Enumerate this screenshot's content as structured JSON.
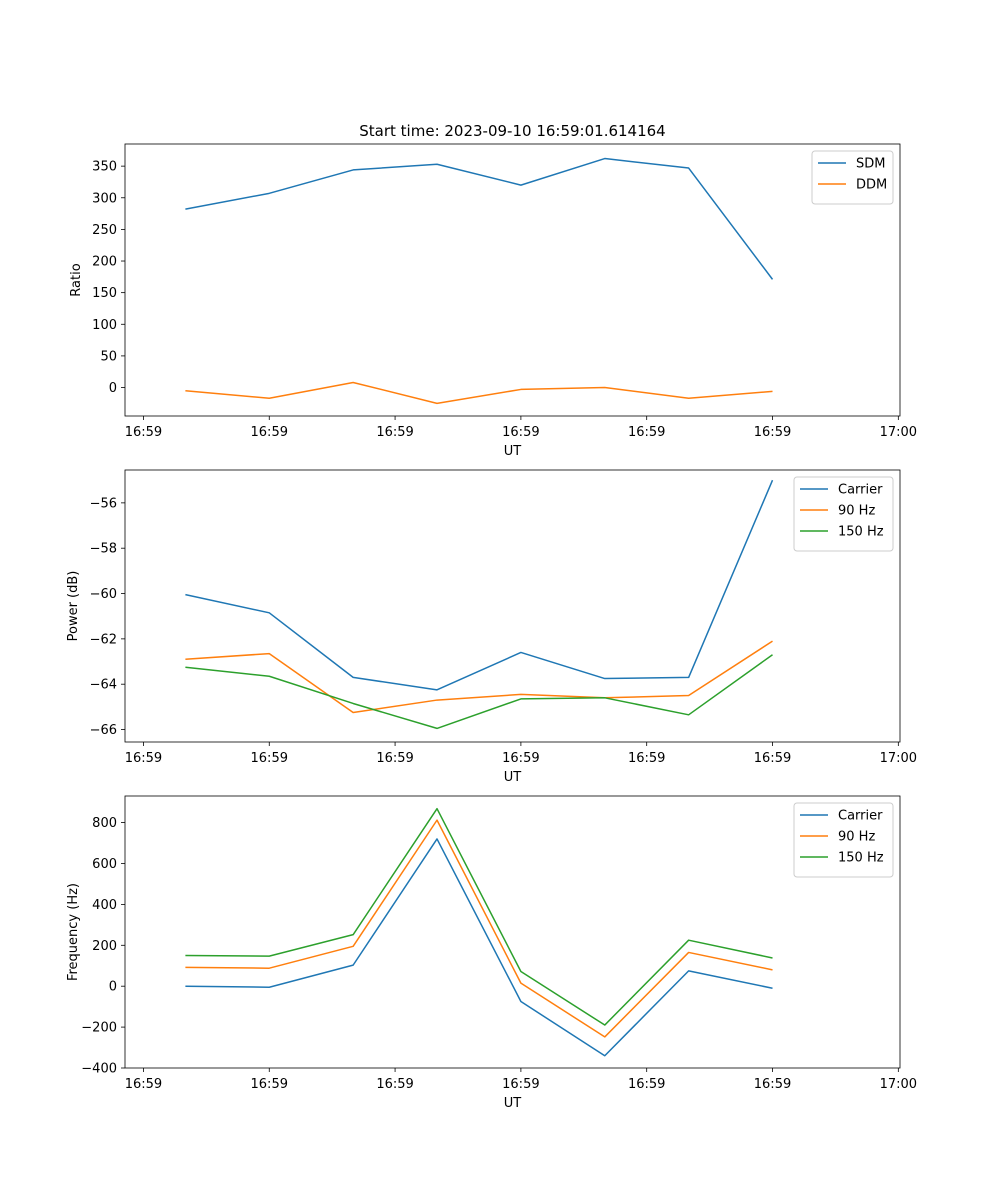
{
  "figure_title": "Start time: 2023-09-10 16:59:01.614164",
  "chart_data": [
    {
      "type": "line",
      "title": "Start time: 2023-09-10 16:59:01.614164",
      "xlabel": "UT",
      "ylabel": "Ratio",
      "x": [
        1,
        2,
        3,
        4,
        5,
        6,
        7,
        8
      ],
      "xlim": [
        0.28,
        9.52
      ],
      "xticks": [
        0.5,
        2.0,
        3.5,
        5.0,
        6.5,
        8.0,
        9.5
      ],
      "xtick_labels": [
        "16:59",
        "16:59",
        "16:59",
        "16:59",
        "16:59",
        "16:59",
        "17:00"
      ],
      "ylim": [
        -45,
        385
      ],
      "yticks": [
        0,
        50,
        100,
        150,
        200,
        250,
        300,
        350
      ],
      "ytick_labels": [
        "0",
        "50",
        "100",
        "150",
        "200",
        "250",
        "300",
        "350"
      ],
      "legend_loc": "top-right",
      "series": [
        {
          "name": "SDM",
          "color": "#1f77b4",
          "values": [
            282,
            307,
            344,
            353,
            320,
            362,
            347,
            171
          ]
        },
        {
          "name": "DDM",
          "color": "#ff7f0e",
          "values": [
            -5,
            -17,
            8,
            -25,
            -3,
            0,
            -17,
            -6
          ]
        }
      ]
    },
    {
      "type": "line",
      "title": "",
      "xlabel": "UT",
      "ylabel": "Power (dB)",
      "x": [
        1,
        2,
        3,
        4,
        5,
        6,
        7,
        8
      ],
      "xlim": [
        0.28,
        9.52
      ],
      "xticks": [
        0.5,
        2.0,
        3.5,
        5.0,
        6.5,
        8.0,
        9.5
      ],
      "xtick_labels": [
        "16:59",
        "16:59",
        "16:59",
        "16:59",
        "16:59",
        "16:59",
        "17:00"
      ],
      "ylim": [
        -66.55,
        -54.55
      ],
      "yticks": [
        -66,
        -64,
        -62,
        -60,
        -58,
        -56
      ],
      "ytick_labels": [
        "−66",
        "−64",
        "−62",
        "−60",
        "−58",
        "−56"
      ],
      "legend_loc": "top-right",
      "series": [
        {
          "name": "Carrier",
          "color": "#1f77b4",
          "values": [
            -60.05,
            -60.85,
            -63.7,
            -64.25,
            -62.6,
            -63.75,
            -63.7,
            -55.0
          ]
        },
        {
          "name": "90 Hz",
          "color": "#ff7f0e",
          "values": [
            -62.9,
            -62.65,
            -65.25,
            -64.7,
            -64.45,
            -64.6,
            -64.5,
            -62.1
          ]
        },
        {
          "name": "150 Hz",
          "color": "#2ca02c",
          "values": [
            -63.25,
            -63.65,
            -64.85,
            -65.95,
            -64.65,
            -64.6,
            -65.35,
            -62.7
          ]
        }
      ]
    },
    {
      "type": "line",
      "title": "",
      "xlabel": "UT",
      "ylabel": "Frequency (Hz)",
      "x": [
        1,
        2,
        3,
        4,
        5,
        6,
        7,
        8
      ],
      "xlim": [
        0.28,
        9.52
      ],
      "xticks": [
        0.5,
        2.0,
        3.5,
        5.0,
        6.5,
        8.0,
        9.5
      ],
      "xtick_labels": [
        "16:59",
        "16:59",
        "16:59",
        "16:59",
        "16:59",
        "16:59",
        "17:00"
      ],
      "ylim": [
        -400,
        930
      ],
      "yticks": [
        -400,
        -200,
        0,
        200,
        400,
        600,
        800
      ],
      "ytick_labels": [
        "−400",
        "−200",
        "0",
        "200",
        "400",
        "600",
        "800"
      ],
      "legend_loc": "top-right",
      "series": [
        {
          "name": "Carrier",
          "color": "#1f77b4",
          "values": [
            0,
            -5,
            103,
            720,
            -75,
            -340,
            75,
            -10
          ]
        },
        {
          "name": "90 Hz",
          "color": "#ff7f0e",
          "values": [
            92,
            88,
            195,
            812,
            15,
            -248,
            165,
            80
          ]
        },
        {
          "name": "150 Hz",
          "color": "#2ca02c",
          "values": [
            150,
            147,
            252,
            868,
            72,
            -190,
            225,
            138
          ]
        }
      ]
    }
  ]
}
